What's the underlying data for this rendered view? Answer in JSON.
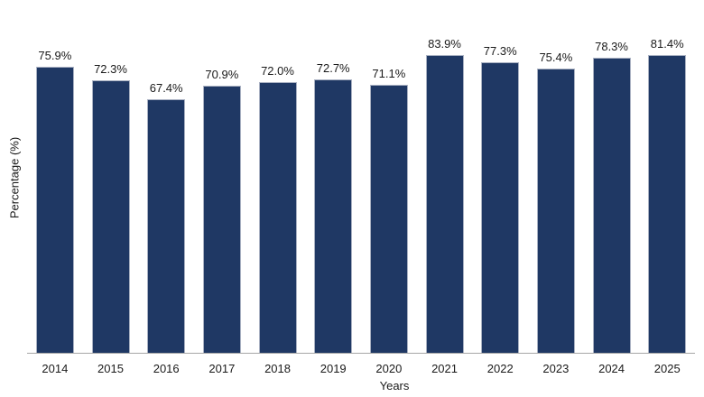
{
  "chart_data": {
    "type": "bar",
    "title": "",
    "categories": [
      "2014",
      "2015",
      "2016",
      "2017",
      "2018",
      "2019",
      "2020",
      "2021",
      "2022",
      "2023",
      "2024",
      "2025"
    ],
    "values": [
      75.9,
      72.3,
      67.4,
      70.9,
      72.0,
      72.7,
      71.1,
      83.9,
      77.3,
      75.4,
      78.3,
      81.4
    ],
    "value_labels": [
      "75.9%",
      "72.3%",
      "67.4%",
      "70.9%",
      "72.0%",
      "72.7%",
      "71.1%",
      "83.9%",
      "77.3%",
      "75.4%",
      "78.3%",
      "81.4%"
    ],
    "xlabel": "Years",
    "ylabel": "Percentage (%)",
    "ylim": [
      0,
      90
    ],
    "grid": "off",
    "legend": "none",
    "y_ticks_visible": false,
    "colors": {
      "bar_fill": "#1f3864",
      "bar_border": "#a9b1c2",
      "axis_line": "#a6a6a6",
      "text": "#1a1a1a",
      "background": "#ffffff"
    }
  }
}
